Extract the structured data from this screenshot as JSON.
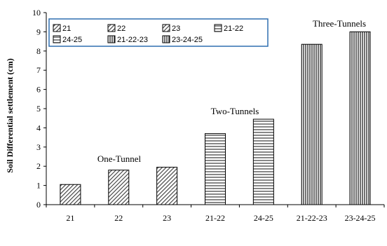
{
  "chart_data": {
    "type": "bar",
    "title": "",
    "xlabel": "",
    "ylabel": "Soil Differential settlement (cm)",
    "ylim": [
      0,
      10
    ],
    "yticks": [
      "0",
      "1",
      "2",
      "3",
      "4",
      "5",
      "6",
      "7",
      "8",
      "9",
      "10"
    ],
    "categories": [
      "21",
      "22",
      "23",
      "21-22",
      "24-25",
      "21-22-23",
      "23-24-25"
    ],
    "values": [
      1.05,
      1.8,
      1.95,
      3.7,
      4.45,
      8.35,
      9.0
    ],
    "patterns": [
      "diag",
      "diag",
      "diag",
      "horiz",
      "horiz",
      "vert",
      "vert"
    ],
    "legend": {
      "placement": "top-left",
      "entries": [
        "21",
        "22",
        "23",
        "21-22",
        "24-25",
        "21-22-23",
        "23-24-25"
      ]
    },
    "annotations": [
      "One-Tunnel",
      "Two-Tunnels",
      "Three-Tunnels"
    ],
    "grid": false
  }
}
